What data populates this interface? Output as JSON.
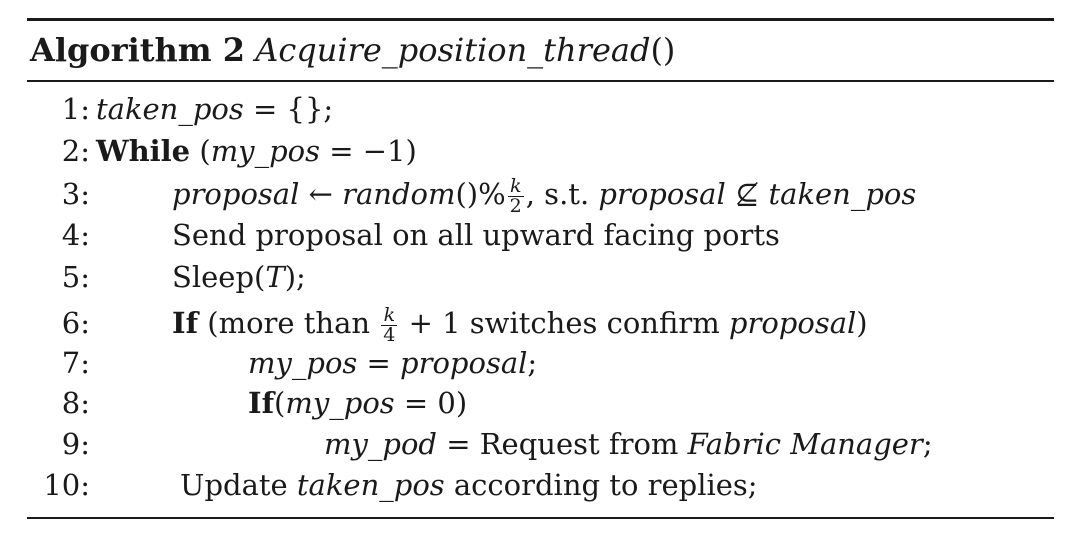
{
  "algorithm": {
    "label": "Algorithm 2",
    "name": "Acquire_position_thread",
    "parens": "()"
  },
  "lines": [
    {
      "num": "1:",
      "a": "taken_pos",
      "b": " = {};"
    },
    {
      "num": "2:",
      "kw": "While",
      "b": " (",
      "var": "my_pos",
      "c": " = −1)"
    },
    {
      "num": "3:",
      "a": "proposal",
      "b": " ← ",
      "c": "random",
      "d": "()%",
      "frac_num": "k",
      "frac_den": "2",
      "e": ", s.t. ",
      "f": "proposal",
      "g": " ⊈ ",
      "h": "taken_pos"
    },
    {
      "num": "4:",
      "text": "Send proposal on all upward facing ports"
    },
    {
      "num": "5:",
      "a": "Sleep(",
      "var": "T",
      "b": ");"
    },
    {
      "num": "6:",
      "kw": "If",
      "b": " (more than ",
      "frac_num": "k",
      "frac_den": "4",
      "c": " + 1 switches confirm ",
      "var": "proposal",
      "d": ")"
    },
    {
      "num": "7:",
      "a": "my_pos",
      "b": " = ",
      "c": "proposal",
      "d": ";"
    },
    {
      "num": "8:",
      "kw": "If",
      "b": "(",
      "var": "my_pos",
      "c": " = 0)"
    },
    {
      "num": "9:",
      "a": "my_pod",
      "b": " = Request from ",
      "c": "Fabric Manager",
      "d": ";"
    },
    {
      "num": "10:",
      "a": "Update ",
      "var": "taken_pos",
      "b": " according to replies;"
    }
  ]
}
